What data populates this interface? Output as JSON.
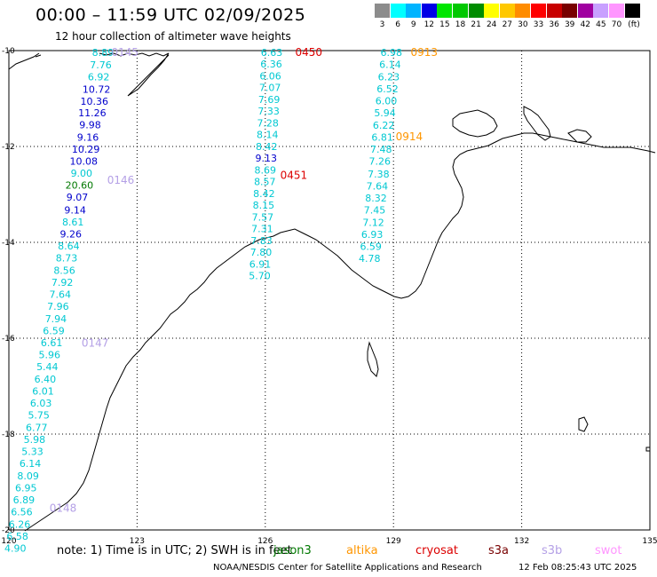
{
  "title": "00:00 – 11:59 UTC 02/09/2025",
  "subtitle": "12 hour collection of altimeter wave heights",
  "scale": {
    "unit": "(ft)",
    "entries": [
      {
        "label": "3",
        "color": "#8c8c8c"
      },
      {
        "label": "6",
        "color": "#00ffff"
      },
      {
        "label": "9",
        "color": "#00b4ff"
      },
      {
        "label": "12",
        "color": "#0000e6"
      },
      {
        "label": "15",
        "color": "#00e600"
      },
      {
        "label": "18",
        "color": "#00c800"
      },
      {
        "label": "21",
        "color": "#008c00"
      },
      {
        "label": "24",
        "color": "#ffff00"
      },
      {
        "label": "27",
        "color": "#ffc800"
      },
      {
        "label": "30",
        "color": "#ff8c00"
      },
      {
        "label": "33",
        "color": "#ff0000"
      },
      {
        "label": "36",
        "color": "#c80000"
      },
      {
        "label": "39",
        "color": "#780000"
      },
      {
        "label": "42",
        "color": "#a000a0"
      },
      {
        "label": "45",
        "color": "#c8a0ff"
      },
      {
        "label": "70",
        "color": "#ff96ff"
      },
      {
        "label": "",
        "color": "#000000"
      }
    ]
  },
  "axes": {
    "lon_labels": [
      "120",
      "123",
      "126",
      "129",
      "132",
      "135"
    ],
    "lat_labels": [
      "-10",
      "-12",
      "-14",
      "-16",
      "-18",
      "-20"
    ]
  },
  "colors": {
    "grid": "#000000",
    "cyan_text": "#00c8d2",
    "blue_text": "#0000cc",
    "green_text": "#007800",
    "time_purple": "#b4a0e6",
    "time_red": "#dc0000",
    "time_orange": "#ff9600"
  },
  "tracks": [
    {
      "time": "0145",
      "time_color": "#b4a0e6",
      "points": [
        {
          "lon": 122.2,
          "lat": -10.04,
          "v": "8.89",
          "c": "#00c8d2"
        },
        {
          "lon": 122.15,
          "lat": -10.3,
          "v": "7.76",
          "c": "#00c8d2"
        },
        {
          "lon": 122.1,
          "lat": -10.55,
          "v": "6.92",
          "c": "#00c8d2"
        },
        {
          "lon": 122.05,
          "lat": -10.81,
          "v": "10.72",
          "c": "#0000cc"
        },
        {
          "lon": 122.0,
          "lat": -11.06,
          "v": "10.36",
          "c": "#0000cc"
        },
        {
          "lon": 121.95,
          "lat": -11.3,
          "v": "11.26",
          "c": "#0000cc"
        },
        {
          "lon": 121.9,
          "lat": -11.55,
          "v": "9.98",
          "c": "#0000cc"
        },
        {
          "lon": 121.85,
          "lat": -11.81,
          "v": "9.16",
          "c": "#0000cc"
        },
        {
          "lon": 121.8,
          "lat": -12.06,
          "v": "10.29",
          "c": "#0000cc"
        },
        {
          "lon": 121.75,
          "lat": -12.31,
          "v": "10.08",
          "c": "#0000cc"
        },
        {
          "lon": 121.7,
          "lat": -12.56,
          "v": "9.00",
          "c": "#00c8d2"
        }
      ]
    },
    {
      "time": "0146",
      "time_color": "#b4a0e6",
      "points": [
        {
          "lon": 121.65,
          "lat": -12.81,
          "v": "20.60",
          "c": "#007800"
        },
        {
          "lon": 121.6,
          "lat": -13.06,
          "v": "9.07",
          "c": "#0000cc"
        },
        {
          "lon": 121.55,
          "lat": -13.32,
          "v": "9.14",
          "c": "#0000cc"
        },
        {
          "lon": 121.5,
          "lat": -13.57,
          "v": "8.61",
          "c": "#00c8d2"
        },
        {
          "lon": 121.45,
          "lat": -13.82,
          "v": "9.26",
          "c": "#0000cc"
        },
        {
          "lon": 121.4,
          "lat": -14.07,
          "v": "8.64",
          "c": "#00c8d2"
        },
        {
          "lon": 121.35,
          "lat": -14.32,
          "v": "8.73",
          "c": "#00c8d2"
        },
        {
          "lon": 121.3,
          "lat": -14.58,
          "v": "8.56",
          "c": "#00c8d2"
        },
        {
          "lon": 121.25,
          "lat": -14.83,
          "v": "7.92",
          "c": "#00c8d2"
        },
        {
          "lon": 121.2,
          "lat": -15.08,
          "v": "7.64",
          "c": "#00c8d2"
        },
        {
          "lon": 121.15,
          "lat": -15.33,
          "v": "7.96",
          "c": "#00c8d2"
        },
        {
          "lon": 121.1,
          "lat": -15.59,
          "v": "7.94",
          "c": "#00c8d2"
        },
        {
          "lon": 121.05,
          "lat": -15.84,
          "v": "6.59",
          "c": "#00c8d2"
        },
        {
          "lon": 121.0,
          "lat": -16.09,
          "v": "6.61",
          "c": "#00c8d2"
        },
        {
          "lon": 120.95,
          "lat": -16.34,
          "v": "5.96",
          "c": "#00c8d2"
        }
      ]
    },
    {
      "time": "0147",
      "time_color": "#b4a0e6",
      "points": [
        {
          "lon": 120.9,
          "lat": -16.59,
          "v": "5.44",
          "c": "#00c8d2"
        },
        {
          "lon": 120.85,
          "lat": -16.85,
          "v": "6.40",
          "c": "#00c8d2"
        },
        {
          "lon": 120.8,
          "lat": -17.1,
          "v": "6.01",
          "c": "#00c8d2"
        },
        {
          "lon": 120.75,
          "lat": -17.35,
          "v": "6.03",
          "c": "#00c8d2"
        },
        {
          "lon": 120.7,
          "lat": -17.6,
          "v": "5.75",
          "c": "#00c8d2"
        },
        {
          "lon": 120.65,
          "lat": -17.86,
          "v": "6.77",
          "c": "#00c8d2"
        },
        {
          "lon": 120.6,
          "lat": -18.11,
          "v": "5.98",
          "c": "#00c8d2"
        },
        {
          "lon": 120.55,
          "lat": -18.36,
          "v": "5.33",
          "c": "#00c8d2"
        },
        {
          "lon": 120.5,
          "lat": -18.61,
          "v": "6.14",
          "c": "#00c8d2"
        },
        {
          "lon": 120.45,
          "lat": -18.87,
          "v": "8.09",
          "c": "#00c8d2"
        },
        {
          "lon": 120.4,
          "lat": -19.12,
          "v": "6.95",
          "c": "#00c8d2"
        },
        {
          "lon": 120.35,
          "lat": -19.37,
          "v": "6.89",
          "c": "#00c8d2"
        },
        {
          "lon": 120.3,
          "lat": -19.62,
          "v": "6.56",
          "c": "#00c8d2"
        },
        {
          "lon": 120.25,
          "lat": -19.88,
          "v": "6.26",
          "c": "#00c8d2"
        },
        {
          "lon": 120.2,
          "lat": -20.13,
          "v": "6.58",
          "c": "#00c8d2"
        },
        {
          "lon": 120.15,
          "lat": -20.38,
          "v": "4.90",
          "c": "#00c8d2"
        }
      ]
    },
    {
      "time": "0148",
      "time_color": "#b4a0e6",
      "points": []
    },
    {
      "time": "0450",
      "time_color": "#dc0000",
      "points": [
        {
          "lon": 126.15,
          "lat": -10.04,
          "v": "6.63",
          "c": "#00c8d2"
        },
        {
          "lon": 126.14,
          "lat": -10.28,
          "v": "6.36",
          "c": "#00c8d2"
        },
        {
          "lon": 126.12,
          "lat": -10.53,
          "v": "6.06",
          "c": "#00c8d2"
        },
        {
          "lon": 126.11,
          "lat": -10.77,
          "v": "7.07",
          "c": "#00c8d2"
        },
        {
          "lon": 126.09,
          "lat": -11.02,
          "v": "7.69",
          "c": "#00c8d2"
        },
        {
          "lon": 126.08,
          "lat": -11.26,
          "v": "7.33",
          "c": "#00c8d2"
        },
        {
          "lon": 126.06,
          "lat": -11.51,
          "v": "7.28",
          "c": "#00c8d2"
        },
        {
          "lon": 126.05,
          "lat": -11.75,
          "v": "8.14",
          "c": "#00c8d2"
        },
        {
          "lon": 126.03,
          "lat": -12.0,
          "v": "8.42",
          "c": "#00c8d2"
        },
        {
          "lon": 126.02,
          "lat": -12.24,
          "v": "9.13",
          "c": "#0000cc"
        }
      ]
    },
    {
      "time": "0451",
      "time_color": "#dc0000",
      "points": [
        {
          "lon": 126.0,
          "lat": -12.49,
          "v": "8.69",
          "c": "#00c8d2"
        },
        {
          "lon": 125.99,
          "lat": -12.73,
          "v": "8.57",
          "c": "#00c8d2"
        },
        {
          "lon": 125.97,
          "lat": -12.98,
          "v": "8.42",
          "c": "#00c8d2"
        },
        {
          "lon": 125.96,
          "lat": -13.22,
          "v": "8.15",
          "c": "#00c8d2"
        },
        {
          "lon": 125.94,
          "lat": -13.47,
          "v": "7.57",
          "c": "#00c8d2"
        },
        {
          "lon": 125.93,
          "lat": -13.71,
          "v": "7.31",
          "c": "#00c8d2"
        },
        {
          "lon": 125.91,
          "lat": -13.96,
          "v": "7.83",
          "c": "#00c8d2"
        },
        {
          "lon": 125.9,
          "lat": -14.2,
          "v": "7.80",
          "c": "#00c8d2"
        },
        {
          "lon": 125.88,
          "lat": -14.45,
          "v": "6.91",
          "c": "#00c8d2"
        },
        {
          "lon": 125.87,
          "lat": -14.69,
          "v": "5.70",
          "c": "#00c8d2"
        }
      ]
    },
    {
      "time": "0913",
      "time_color": "#ff9600",
      "points": [
        {
          "lon": 128.95,
          "lat": -10.04,
          "v": "6.98",
          "c": "#00c8d2"
        },
        {
          "lon": 128.92,
          "lat": -10.29,
          "v": "6.14",
          "c": "#00c8d2"
        },
        {
          "lon": 128.89,
          "lat": -10.55,
          "v": "6.23",
          "c": "#00c8d2"
        },
        {
          "lon": 128.86,
          "lat": -10.8,
          "v": "6.52",
          "c": "#00c8d2"
        },
        {
          "lon": 128.83,
          "lat": -11.05,
          "v": "6.00",
          "c": "#00c8d2"
        },
        {
          "lon": 128.8,
          "lat": -11.3,
          "v": "5.94",
          "c": "#00c8d2"
        },
        {
          "lon": 128.77,
          "lat": -11.56,
          "v": "6.22",
          "c": "#00c8d2"
        }
      ]
    },
    {
      "time": "0914",
      "time_color": "#ff9600",
      "points": [
        {
          "lon": 128.74,
          "lat": -11.81,
          "v": "6.81",
          "c": "#00c8d2"
        },
        {
          "lon": 128.71,
          "lat": -12.06,
          "v": "7.48",
          "c": "#00c8d2"
        },
        {
          "lon": 128.68,
          "lat": -12.31,
          "v": "7.26",
          "c": "#00c8d2"
        },
        {
          "lon": 128.65,
          "lat": -12.57,
          "v": "7.38",
          "c": "#00c8d2"
        },
        {
          "lon": 128.62,
          "lat": -12.82,
          "v": "7.64",
          "c": "#00c8d2"
        },
        {
          "lon": 128.59,
          "lat": -13.07,
          "v": "8.32",
          "c": "#00c8d2"
        },
        {
          "lon": 128.56,
          "lat": -13.32,
          "v": "7.45",
          "c": "#00c8d2"
        },
        {
          "lon": 128.53,
          "lat": -13.58,
          "v": "7.12",
          "c": "#00c8d2"
        },
        {
          "lon": 128.5,
          "lat": -13.83,
          "v": "6.93",
          "c": "#00c8d2"
        },
        {
          "lon": 128.47,
          "lat": -14.08,
          "v": "6.59",
          "c": "#00c8d2"
        },
        {
          "lon": 128.44,
          "lat": -14.33,
          "v": "4.78",
          "c": "#00c8d2"
        }
      ]
    }
  ],
  "time_label_positions": {
    "0145": {
      "lon": 122.4,
      "lat": -10.04
    },
    "0146": {
      "lon": 122.3,
      "lat": -12.7
    },
    "0147": {
      "lon": 121.7,
      "lat": -16.1
    },
    "0148": {
      "lon": 120.95,
      "lat": -19.55
    },
    "0450": {
      "lon": 126.7,
      "lat": -10.04
    },
    "0451": {
      "lon": 126.35,
      "lat": -12.6
    },
    "0913": {
      "lon": 129.4,
      "lat": -10.04
    },
    "0914": {
      "lon": 129.05,
      "lat": -11.8
    }
  },
  "note": {
    "prefix": "note:  1) Time is in UTC; 2) SWH is in feet",
    "satellites": [
      {
        "name": "jason3",
        "color": "#007800"
      },
      {
        "name": "altika",
        "color": "#ff9600"
      },
      {
        "name": "cryosat",
        "color": "#dc0000"
      },
      {
        "name": "s3a",
        "color": "#780000"
      },
      {
        "name": "s3b",
        "color": "#b4a0e6"
      },
      {
        "name": "swot",
        "color": "#ff96ff"
      }
    ]
  },
  "credit": "NOAA/NESDIS Center for Satellite Applications and Research",
  "stamp": "12 Feb 08:25:43 UTC 2025"
}
